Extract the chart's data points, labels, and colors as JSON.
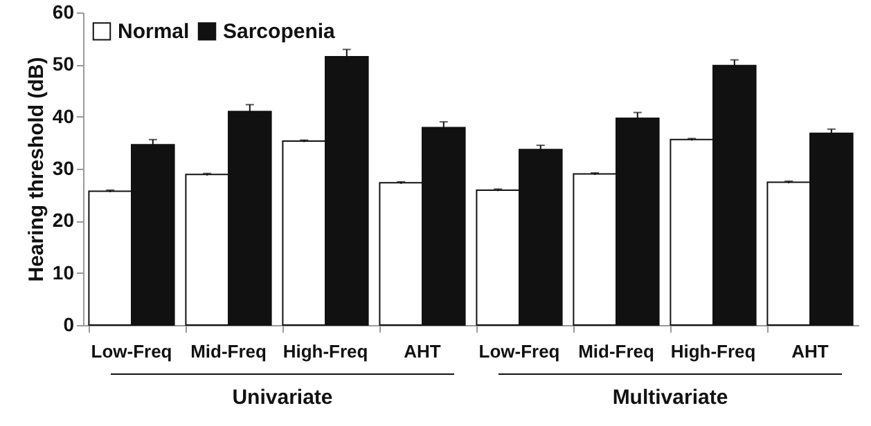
{
  "chart_data": {
    "type": "bar",
    "ylabel": "Hearing threshold (dB)",
    "categories": [
      "Low-Freq",
      "Mid-Freq",
      "High-Freq",
      "AHT",
      "Low-Freq",
      "Mid-Freq",
      "High-Freq",
      "AHT"
    ],
    "series": [
      {
        "name": "Normal",
        "color": "#ffffff",
        "values": [
          25.7,
          28.9,
          35.3,
          27.3,
          25.9,
          29.0,
          35.6,
          27.4
        ],
        "errors": [
          0.2,
          0.2,
          0.2,
          0.2,
          0.2,
          0.2,
          0.2,
          0.2
        ]
      },
      {
        "name": "Sarcopenia",
        "color": "#111111",
        "values": [
          34.6,
          41.0,
          51.5,
          37.9,
          33.7,
          39.7,
          49.8,
          36.8
        ],
        "errors": [
          1.0,
          1.3,
          1.4,
          1.1,
          0.8,
          1.1,
          1.1,
          0.8
        ]
      }
    ],
    "ylim": [
      0,
      60
    ],
    "yticks": [
      0,
      10,
      20,
      30,
      40,
      50,
      60
    ],
    "grid": false,
    "legend": "top left",
    "annotations": [
      "Univariate",
      "Multivariate"
    ]
  }
}
